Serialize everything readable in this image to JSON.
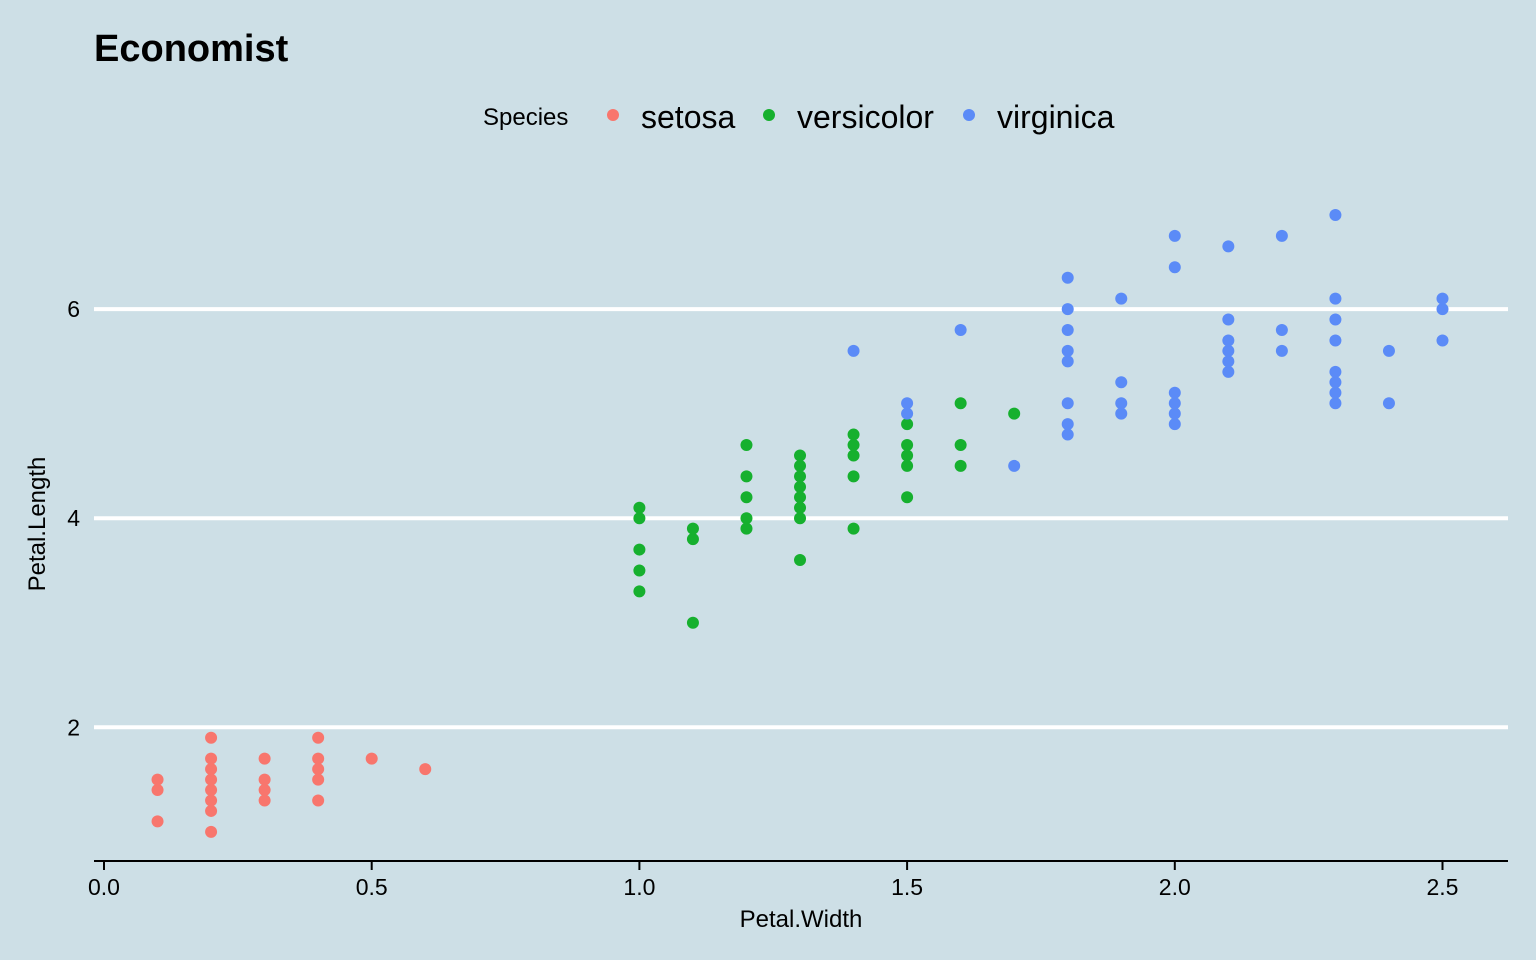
{
  "chart_data": {
    "type": "scatter",
    "title": "Economist",
    "xlabel": "Petal.Width",
    "ylabel": "Petal.Length",
    "xlim": [
      0,
      2.6
    ],
    "ylim": [
      0.8,
      7.1
    ],
    "x_ticks": [
      "0.0",
      "0.5",
      "1.0",
      "1.5",
      "2.0",
      "2.5"
    ],
    "x_tick_values": [
      0,
      0.5,
      1.0,
      1.5,
      2.0,
      2.5
    ],
    "y_ticks": [
      "2",
      "4",
      "6"
    ],
    "y_tick_values": [
      2,
      4,
      6
    ],
    "grid": "horizontal",
    "legend": {
      "title": "Species",
      "position": "top"
    },
    "series": [
      {
        "name": "setosa",
        "color": "#f8766d",
        "points": [
          [
            0.1,
            1.1
          ],
          [
            0.1,
            1.4
          ],
          [
            0.1,
            1.5
          ],
          [
            0.2,
            1.0
          ],
          [
            0.2,
            1.2
          ],
          [
            0.2,
            1.3
          ],
          [
            0.2,
            1.4
          ],
          [
            0.2,
            1.5
          ],
          [
            0.2,
            1.6
          ],
          [
            0.2,
            1.7
          ],
          [
            0.2,
            1.9
          ],
          [
            0.3,
            1.3
          ],
          [
            0.3,
            1.4
          ],
          [
            0.3,
            1.5
          ],
          [
            0.3,
            1.7
          ],
          [
            0.4,
            1.3
          ],
          [
            0.4,
            1.5
          ],
          [
            0.4,
            1.6
          ],
          [
            0.4,
            1.7
          ],
          [
            0.4,
            1.9
          ],
          [
            0.5,
            1.7
          ],
          [
            0.6,
            1.6
          ]
        ]
      },
      {
        "name": "versicolor",
        "color": "#16b02e",
        "points": [
          [
            1.0,
            3.3
          ],
          [
            1.0,
            3.5
          ],
          [
            1.0,
            3.7
          ],
          [
            1.0,
            4.0
          ],
          [
            1.0,
            4.1
          ],
          [
            1.1,
            3.0
          ],
          [
            1.1,
            3.8
          ],
          [
            1.1,
            3.9
          ],
          [
            1.2,
            3.9
          ],
          [
            1.2,
            4.0
          ],
          [
            1.2,
            4.2
          ],
          [
            1.2,
            4.4
          ],
          [
            1.2,
            4.7
          ],
          [
            1.3,
            3.6
          ],
          [
            1.3,
            4.0
          ],
          [
            1.3,
            4.1
          ],
          [
            1.3,
            4.2
          ],
          [
            1.3,
            4.3
          ],
          [
            1.3,
            4.4
          ],
          [
            1.3,
            4.5
          ],
          [
            1.3,
            4.6
          ],
          [
            1.4,
            3.9
          ],
          [
            1.4,
            4.4
          ],
          [
            1.4,
            4.6
          ],
          [
            1.4,
            4.7
          ],
          [
            1.4,
            4.8
          ],
          [
            1.5,
            4.2
          ],
          [
            1.5,
            4.5
          ],
          [
            1.5,
            4.6
          ],
          [
            1.5,
            4.7
          ],
          [
            1.5,
            4.9
          ],
          [
            1.6,
            4.5
          ],
          [
            1.6,
            4.7
          ],
          [
            1.6,
            5.1
          ],
          [
            1.7,
            5.0
          ]
        ]
      },
      {
        "name": "virginica",
        "color": "#5b8bf7",
        "points": [
          [
            1.4,
            5.6
          ],
          [
            1.5,
            5.0
          ],
          [
            1.5,
            5.1
          ],
          [
            1.6,
            5.8
          ],
          [
            1.7,
            4.5
          ],
          [
            1.8,
            4.8
          ],
          [
            1.8,
            4.9
          ],
          [
            1.8,
            5.1
          ],
          [
            1.8,
            5.5
          ],
          [
            1.8,
            5.6
          ],
          [
            1.8,
            5.8
          ],
          [
            1.8,
            6.0
          ],
          [
            1.8,
            6.3
          ],
          [
            1.9,
            5.0
          ],
          [
            1.9,
            5.1
          ],
          [
            1.9,
            5.3
          ],
          [
            1.9,
            6.1
          ],
          [
            2.0,
            4.9
          ],
          [
            2.0,
            5.0
          ],
          [
            2.0,
            5.1
          ],
          [
            2.0,
            5.2
          ],
          [
            2.0,
            6.4
          ],
          [
            2.0,
            6.7
          ],
          [
            2.1,
            5.4
          ],
          [
            2.1,
            5.5
          ],
          [
            2.1,
            5.6
          ],
          [
            2.1,
            5.7
          ],
          [
            2.1,
            5.9
          ],
          [
            2.1,
            6.6
          ],
          [
            2.2,
            5.6
          ],
          [
            2.2,
            5.8
          ],
          [
            2.2,
            6.7
          ],
          [
            2.3,
            5.1
          ],
          [
            2.3,
            5.2
          ],
          [
            2.3,
            5.3
          ],
          [
            2.3,
            5.4
          ],
          [
            2.3,
            5.7
          ],
          [
            2.3,
            5.9
          ],
          [
            2.3,
            6.1
          ],
          [
            2.3,
            6.9
          ],
          [
            2.4,
            5.1
          ],
          [
            2.4,
            5.6
          ],
          [
            2.5,
            5.7
          ],
          [
            2.5,
            6.0
          ],
          [
            2.5,
            6.1
          ]
        ]
      }
    ]
  }
}
